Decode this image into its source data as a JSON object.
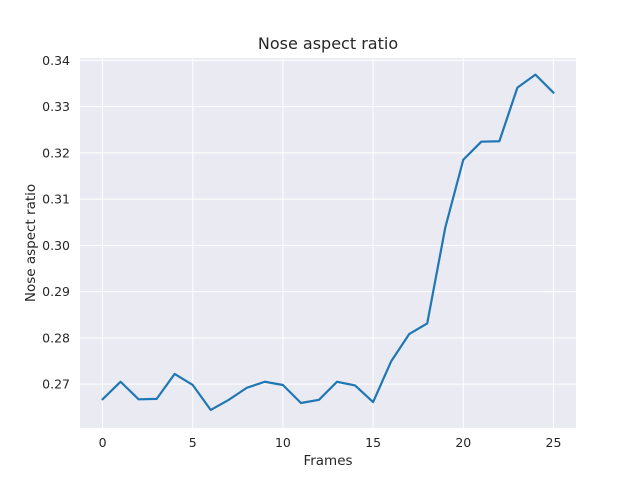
{
  "chart_data": {
    "type": "line",
    "title": "Nose aspect ratio",
    "xlabel": "Frames",
    "ylabel": "Nose aspect ratio",
    "xlim": [
      -1.25,
      26.25
    ],
    "ylim": [
      0.2605,
      0.3405
    ],
    "x_ticks": [
      0,
      5,
      10,
      15,
      20,
      25
    ],
    "y_ticks": [
      0.27,
      0.28,
      0.29,
      0.3,
      0.31,
      0.32,
      0.33,
      0.34
    ],
    "y_tick_labels": [
      "0.27",
      "0.28",
      "0.29",
      "0.30",
      "0.31",
      "0.32",
      "0.33",
      "0.34"
    ],
    "grid": true,
    "series": [
      {
        "x": [
          0,
          1,
          2,
          3,
          4,
          5,
          6,
          7,
          8,
          9,
          10,
          11,
          12,
          13,
          14,
          15,
          16,
          17,
          18,
          19,
          20,
          21,
          22,
          23,
          24,
          25
        ],
        "values": [
          0.2667,
          0.2705,
          0.2667,
          0.2668,
          0.2722,
          0.2698,
          0.2644,
          0.2666,
          0.2692,
          0.2705,
          0.2698,
          0.2659,
          0.2666,
          0.2705,
          0.2697,
          0.2661,
          0.2749,
          0.2808,
          0.2831,
          0.3038,
          0.3185,
          0.3224,
          0.3225,
          0.3341,
          0.3369,
          0.333
        ]
      }
    ],
    "colors": {
      "line": "#1f77b4",
      "plot_bg": "#eaeaf2",
      "grid": "#ffffff"
    }
  }
}
